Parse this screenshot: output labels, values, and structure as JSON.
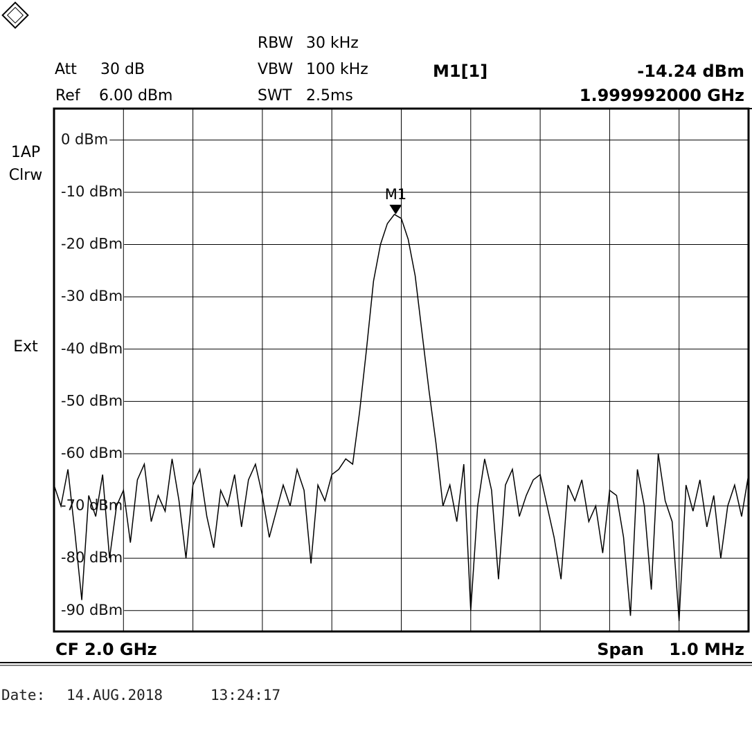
{
  "chart_data": {
    "type": "line",
    "color": "#000000",
    "grid": true,
    "header": {
      "att_label": "Att",
      "att": "30 dB",
      "ref_label": "Ref",
      "ref": "6.00 dBm",
      "rbw_label": "RBW",
      "rbw": "30 kHz",
      "vbw_label": "VBW",
      "vbw": "100 kHz",
      "swt_label": "SWT",
      "swt": "2.5ms",
      "marker_name": "M1[1]",
      "marker_level": "-14.24 dBm",
      "marker_freq": "1.999992000 GHz"
    },
    "side": {
      "trace_mode": "1AP",
      "detector": "Clrw",
      "trigger": "Ext"
    },
    "footer": {
      "cf_label": "CF",
      "cf": "2.0 GHz",
      "span_label": "Span",
      "span": "1.0 MHz"
    },
    "date": {
      "label": "Date:",
      "day": "14.AUG.2018",
      "time": "13:24:17"
    },
    "marker": {
      "label": "M1",
      "x": 1.999992,
      "y": -14.24
    },
    "ylim": [
      -94,
      6
    ],
    "yticks": [
      {
        "value": 0,
        "label": "0 dBm"
      },
      {
        "value": -10,
        "label": "-10 dBm"
      },
      {
        "value": -20,
        "label": "-20 dBm"
      },
      {
        "value": -30,
        "label": "-30 dBm"
      },
      {
        "value": -40,
        "label": "-40 dBm"
      },
      {
        "value": -50,
        "label": "-50 dBm"
      },
      {
        "value": -60,
        "label": "-60 dBm"
      },
      {
        "value": -70,
        "label": "-70 dBm"
      },
      {
        "value": -80,
        "label": "-80 dBm"
      },
      {
        "value": -90,
        "label": "-90 dBm"
      }
    ],
    "xlim": [
      1.9995,
      2.0005
    ],
    "x": [
      1.9995,
      1.99951,
      1.99952,
      1.99953,
      1.99954,
      1.99955,
      1.99956,
      1.99957,
      1.99958,
      1.99959,
      1.9996,
      1.99961,
      1.99962,
      1.99963,
      1.99964,
      1.99965,
      1.99966,
      1.99967,
      1.99968,
      1.99969,
      1.9997,
      1.99971,
      1.99972,
      1.99973,
      1.99974,
      1.99975,
      1.99976,
      1.99977,
      1.99978,
      1.99979,
      1.9998,
      1.99981,
      1.99982,
      1.99983,
      1.99984,
      1.99985,
      1.99986,
      1.99987,
      1.99988,
      1.99989,
      1.9999,
      1.99991,
      1.99992,
      1.99993,
      1.99994,
      1.99995,
      1.99996,
      1.99997,
      1.99998,
      1.99999,
      2,
      2.00001,
      2.00002,
      2.00003,
      2.00004,
      2.00005,
      2.00006,
      2.00007,
      2.00008,
      2.00009,
      2.0001,
      2.00011,
      2.00012,
      2.00013,
      2.00014,
      2.00015,
      2.00016,
      2.00017,
      2.00018,
      2.00019,
      2.0002,
      2.00021,
      2.00022,
      2.00023,
      2.00024,
      2.00025,
      2.00026,
      2.00027,
      2.00028,
      2.00029,
      2.0003,
      2.00031,
      2.00032,
      2.00033,
      2.00034,
      2.00035,
      2.00036,
      2.00037,
      2.00038,
      2.00039,
      2.0004,
      2.00041,
      2.00042,
      2.00043,
      2.00044,
      2.00045,
      2.00046,
      2.00047,
      2.00048,
      2.00049,
      2.0005
    ],
    "values": [
      -66,
      -70,
      -63,
      -75,
      -88,
      -68,
      -72,
      -64,
      -80,
      -70,
      -67,
      -77,
      -65,
      -62,
      -73,
      -68,
      -71,
      -61,
      -69,
      -80,
      -66,
      -63,
      -72,
      -78,
      -67,
      -70,
      -64,
      -74,
      -65,
      -62,
      -68,
      -76,
      -71,
      -66,
      -70,
      -63,
      -67,
      -81,
      -66,
      -69,
      -64,
      -63,
      -61,
      -62,
      -52,
      -40,
      -27,
      -20,
      -16,
      -14.24,
      -15,
      -19,
      -26,
      -37,
      -48,
      -58,
      -70,
      -66,
      -73,
      -62,
      -90,
      -70,
      -61,
      -67,
      -84,
      -66,
      -63,
      -72,
      -68,
      -65,
      -64,
      -70,
      -76,
      -84,
      -66,
      -69,
      -65,
      -73,
      -70,
      -79,
      -67,
      -68,
      -76,
      -91,
      -63,
      -70,
      -86,
      -60,
      -69,
      -73,
      -92,
      -66,
      -71,
      -65,
      -74,
      -68,
      -80,
      -70,
      -66,
      -72,
      -64
    ]
  }
}
